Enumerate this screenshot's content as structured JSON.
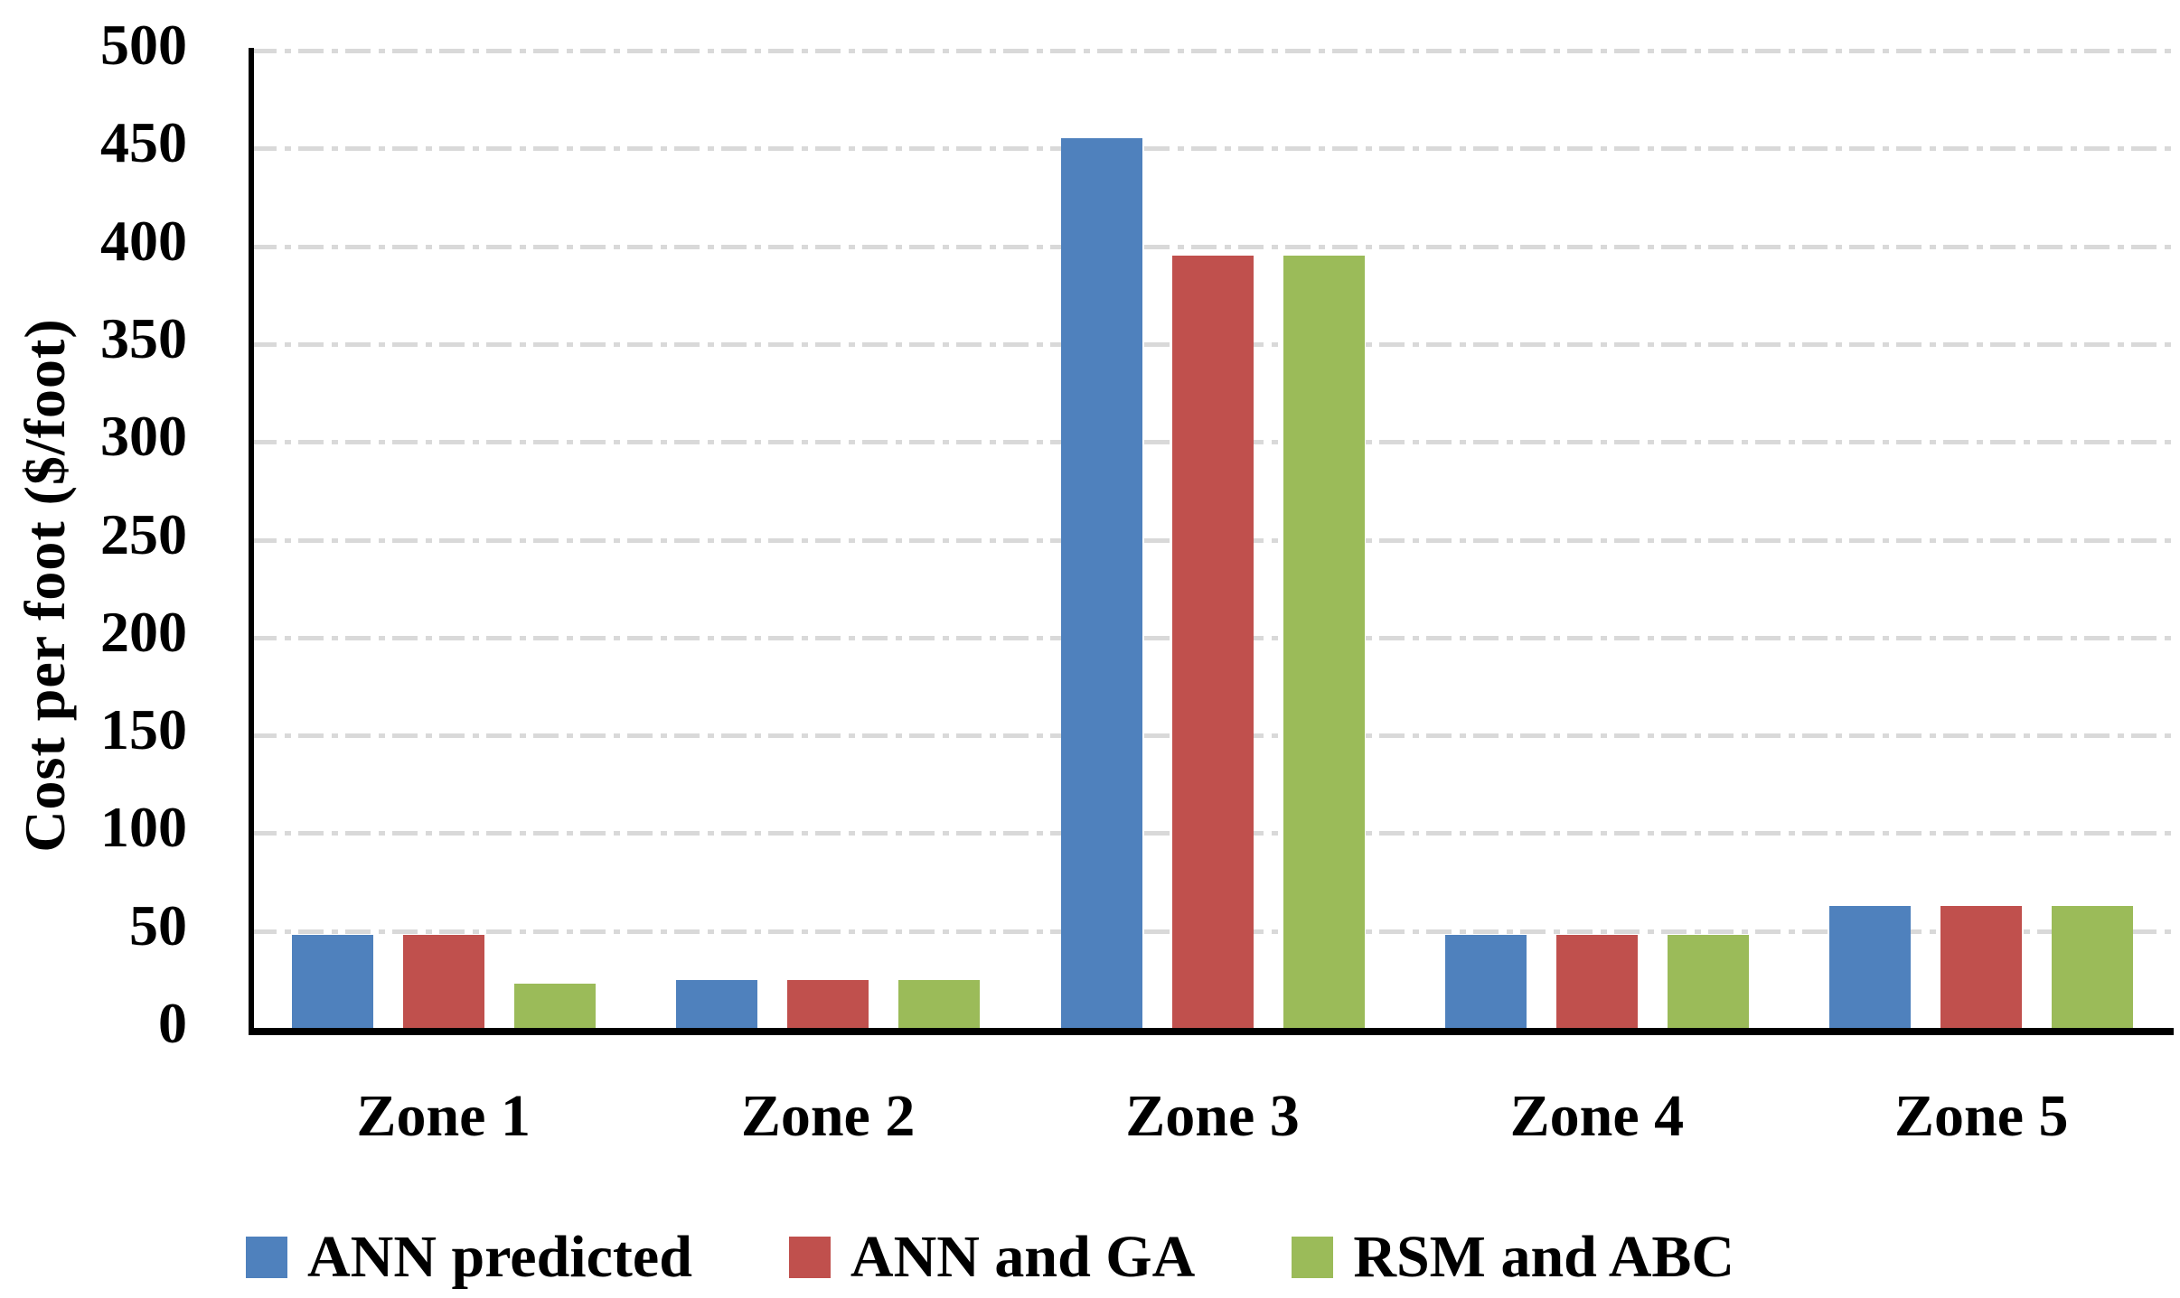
{
  "chart_data": {
    "type": "bar",
    "title": "",
    "xlabel": "",
    "ylabel": "Cost per foot ($/foot)",
    "categories": [
      "Zone 1",
      "Zone 2",
      "Zone 3",
      "Zone 4",
      "Zone 5"
    ],
    "series": [
      {
        "name": "ANN predicted",
        "color": "#4F81BD",
        "values": [
          48,
          25,
          455,
          48,
          63
        ]
      },
      {
        "name": "ANN and GA",
        "color": "#C0504D",
        "values": [
          48,
          25,
          395,
          48,
          63
        ]
      },
      {
        "name": "RSM and ABC",
        "color": "#9BBB59",
        "values": [
          23,
          25,
          395,
          48,
          63
        ]
      }
    ],
    "ylim": [
      0,
      500
    ],
    "ytick_step": 50,
    "yticks": [
      0,
      50,
      100,
      150,
      200,
      250,
      300,
      350,
      400,
      450,
      500
    ],
    "grid": "horizontal-dashed",
    "legend_position": "bottom",
    "colors": {
      "axis": "#000000",
      "gridline": "#D9D9D9",
      "text": "#000000",
      "background": "#FFFFFF"
    }
  }
}
